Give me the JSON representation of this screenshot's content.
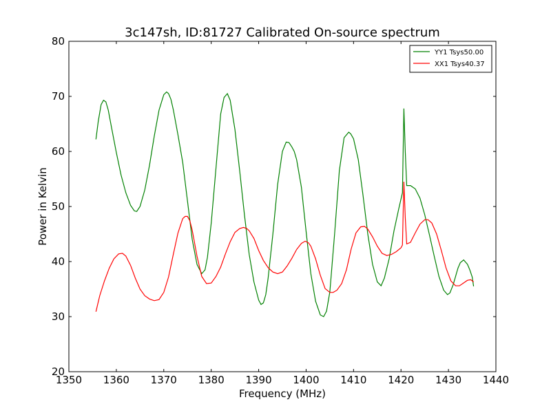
{
  "chart_data": {
    "type": "line",
    "title": "3c147sh, ID:81727 Calibrated On-source spectrum",
    "xlabel": "Frequency (MHz)",
    "ylabel": "Power in Kelvin",
    "xlim": [
      1350,
      1440
    ],
    "ylim": [
      20,
      80
    ],
    "xticks": [
      1350,
      1360,
      1370,
      1380,
      1390,
      1400,
      1410,
      1420,
      1430,
      1440
    ],
    "yticks": [
      20,
      30,
      40,
      50,
      60,
      70,
      80
    ],
    "grid": false,
    "legend_position": "top-right",
    "series": [
      {
        "name": "YY1 Tsys50.00",
        "color": "#008000",
        "x": [
          1355.7,
          1356.2,
          1356.8,
          1357.3,
          1357.8,
          1358.3,
          1359.0,
          1360.0,
          1361.0,
          1362.0,
          1363.0,
          1363.8,
          1364.3,
          1365.0,
          1366.0,
          1367.0,
          1368.0,
          1369.0,
          1370.0,
          1370.6,
          1371.0,
          1371.5,
          1372.0,
          1373.0,
          1374.0,
          1375.0,
          1376.0,
          1377.0,
          1378.0,
          1378.7,
          1379.2,
          1380.0,
          1381.0,
          1382.0,
          1382.7,
          1383.4,
          1384.0,
          1385.0,
          1386.0,
          1387.0,
          1388.0,
          1389.0,
          1390.0,
          1390.5,
          1391.0,
          1391.5,
          1392.0,
          1393.0,
          1394.0,
          1395.0,
          1395.8,
          1396.4,
          1397.0,
          1397.5,
          1398.0,
          1399.0,
          1400.0,
          1401.0,
          1402.0,
          1403.0,
          1403.7,
          1404.3,
          1405.0,
          1406.0,
          1407.0,
          1408.0,
          1409.0,
          1409.4,
          1410.0,
          1411.0,
          1412.0,
          1413.0,
          1414.0,
          1415.0,
          1415.8,
          1416.5,
          1417.5,
          1418.5,
          1419.5,
          1420.3,
          1420.6,
          1420.9,
          1421.2,
          1422.0,
          1423.0,
          1424.0,
          1425.0,
          1426.0,
          1427.0,
          1428.0,
          1429.0,
          1429.8,
          1430.3,
          1431.0,
          1432.0,
          1432.5,
          1433.2,
          1434.0,
          1434.5,
          1435.0,
          1435.3
        ],
        "y": [
          62.2,
          65.5,
          68.5,
          69.3,
          69.0,
          67.5,
          64.3,
          59.8,
          55.7,
          52.5,
          50.2,
          49.2,
          49.1,
          50.0,
          53.0,
          57.5,
          62.8,
          67.5,
          70.3,
          70.8,
          70.5,
          69.5,
          67.6,
          63.0,
          58.0,
          51.0,
          44.0,
          39.5,
          37.8,
          38.5,
          40.8,
          47.0,
          57.0,
          66.8,
          69.8,
          70.5,
          69.3,
          64.0,
          56.5,
          48.5,
          41.3,
          36.3,
          33.0,
          32.2,
          32.5,
          34.0,
          37.0,
          45.0,
          54.0,
          60.0,
          61.7,
          61.6,
          60.8,
          60.0,
          58.5,
          53.5,
          45.5,
          37.8,
          32.8,
          30.3,
          30.0,
          31.0,
          34.5,
          45.0,
          56.5,
          62.5,
          63.5,
          63.2,
          62.3,
          58.5,
          52.0,
          45.0,
          39.5,
          36.3,
          35.6,
          37.0,
          40.5,
          45.5,
          49.5,
          52.5,
          67.8,
          60.0,
          53.8,
          53.8,
          53.2,
          51.5,
          48.5,
          44.8,
          41.0,
          37.3,
          34.8,
          34.0,
          34.3,
          35.8,
          38.8,
          39.8,
          40.3,
          39.5,
          38.5,
          37.2,
          35.5
        ]
      },
      {
        "name": "XX1 Tsys40.37",
        "color": "#ff0000",
        "x": [
          1355.7,
          1356.5,
          1357.5,
          1358.5,
          1359.5,
          1360.5,
          1361.3,
          1362.0,
          1363.0,
          1364.0,
          1365.0,
          1366.0,
          1367.0,
          1368.0,
          1369.0,
          1370.0,
          1371.0,
          1372.0,
          1373.0,
          1374.0,
          1374.5,
          1375.0,
          1375.5,
          1376.0,
          1377.0,
          1378.0,
          1379.0,
          1380.0,
          1381.0,
          1382.0,
          1383.0,
          1384.0,
          1385.0,
          1386.0,
          1386.8,
          1387.5,
          1388.0,
          1389.0,
          1390.0,
          1391.0,
          1392.0,
          1393.0,
          1394.0,
          1395.0,
          1396.0,
          1397.0,
          1398.0,
          1399.0,
          1399.8,
          1400.5,
          1401.0,
          1402.0,
          1403.0,
          1404.0,
          1405.0,
          1405.7,
          1406.5,
          1407.5,
          1408.5,
          1409.5,
          1410.5,
          1411.5,
          1412.3,
          1413.0,
          1414.0,
          1415.0,
          1416.0,
          1417.0,
          1418.0,
          1419.0,
          1420.0,
          1420.3,
          1420.6,
          1420.9,
          1421.2,
          1422.0,
          1423.0,
          1424.0,
          1425.0,
          1425.7,
          1426.5,
          1427.5,
          1428.5,
          1429.5,
          1430.5,
          1431.5,
          1432.3,
          1433.0,
          1434.0,
          1434.7,
          1435.3
        ],
        "y": [
          30.9,
          33.8,
          36.5,
          38.8,
          40.5,
          41.4,
          41.5,
          41.0,
          39.3,
          37.0,
          35.0,
          33.8,
          33.2,
          32.9,
          33.1,
          34.4,
          37.2,
          41.3,
          45.2,
          47.8,
          48.2,
          48.2,
          47.4,
          45.7,
          41.0,
          37.3,
          36.0,
          36.1,
          37.3,
          39.0,
          41.4,
          43.6,
          45.3,
          46.0,
          46.2,
          46.0,
          45.6,
          44.2,
          42.0,
          40.2,
          38.9,
          38.1,
          37.8,
          38.1,
          39.2,
          40.6,
          42.2,
          43.3,
          43.7,
          43.4,
          42.8,
          40.5,
          37.5,
          35.1,
          34.4,
          34.4,
          34.8,
          36.0,
          38.5,
          42.3,
          45.2,
          46.3,
          46.4,
          45.9,
          44.5,
          42.8,
          41.5,
          41.1,
          41.3,
          41.8,
          42.5,
          43.0,
          54.5,
          48.0,
          43.2,
          43.5,
          45.2,
          46.8,
          47.6,
          47.6,
          47.0,
          45.0,
          42.0,
          38.8,
          36.5,
          35.6,
          35.6,
          36.0,
          36.6,
          36.7,
          36.3
        ]
      }
    ]
  }
}
